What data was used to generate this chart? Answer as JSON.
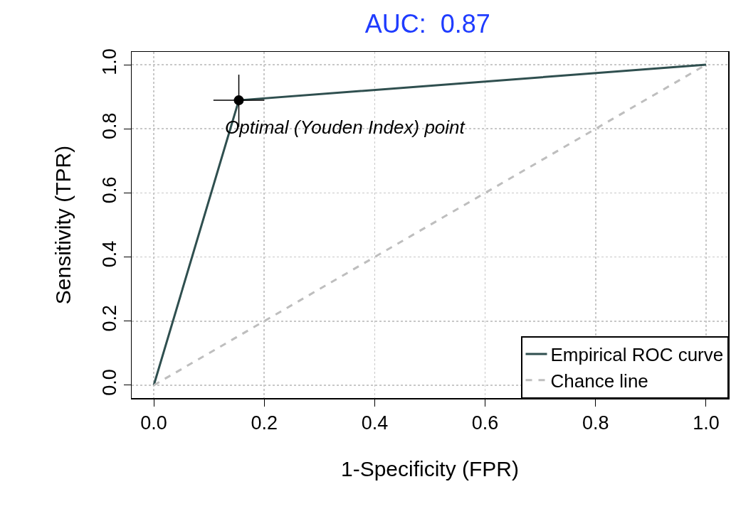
{
  "chart_data": {
    "type": "line",
    "title": "AUC:  0.87",
    "xlabel": "1-Specificity (FPR)",
    "ylabel": "Sensitivity (TPR)",
    "xlim": [
      -0.04,
      1.04
    ],
    "ylim": [
      -0.04,
      1.04
    ],
    "xticks": [
      {
        "value": 0,
        "label": "0.0"
      },
      {
        "value": 0.2,
        "label": "0.2"
      },
      {
        "value": 0.4,
        "label": "0.4"
      },
      {
        "value": 0.6,
        "label": "0.6"
      },
      {
        "value": 0.8,
        "label": "0.8"
      },
      {
        "value": 1,
        "label": "1.0"
      }
    ],
    "yticks": [
      {
        "value": 0,
        "label": "0.0"
      },
      {
        "value": 0.2,
        "label": "0.2"
      },
      {
        "value": 0.4,
        "label": "0.4"
      },
      {
        "value": 0.6,
        "label": "0.6"
      },
      {
        "value": 0.8,
        "label": "0.8"
      },
      {
        "value": 1,
        "label": "1.0"
      }
    ],
    "grid": true,
    "legend": "bottom right",
    "series": [
      {
        "name": "Empirical ROC curve",
        "color": "#2f4f4f",
        "line_style": "solid",
        "marker": "none",
        "x": [
          0,
          0.154,
          1
        ],
        "values": [
          0,
          0.889,
          1
        ]
      },
      {
        "name": "Chance line",
        "color": "#bebebe",
        "line_style": "dashed",
        "marker": "none",
        "x": [
          0,
          1
        ],
        "values": [
          0,
          1
        ]
      },
      {
        "type": "scatter",
        "color": "#000000",
        "marker": "circle",
        "x": [
          0.154
        ],
        "values": [
          0.889
        ],
        "errors": [
          [
            0.806,
            0.969
          ]
        ],
        "xerrors": [
          [
            0.108,
            0.2
          ]
        ]
      }
    ],
    "annotations": [
      {
        "text": "Optimal (Youden Index) point",
        "x": 0.154,
        "y": 0.889
      }
    ]
  }
}
